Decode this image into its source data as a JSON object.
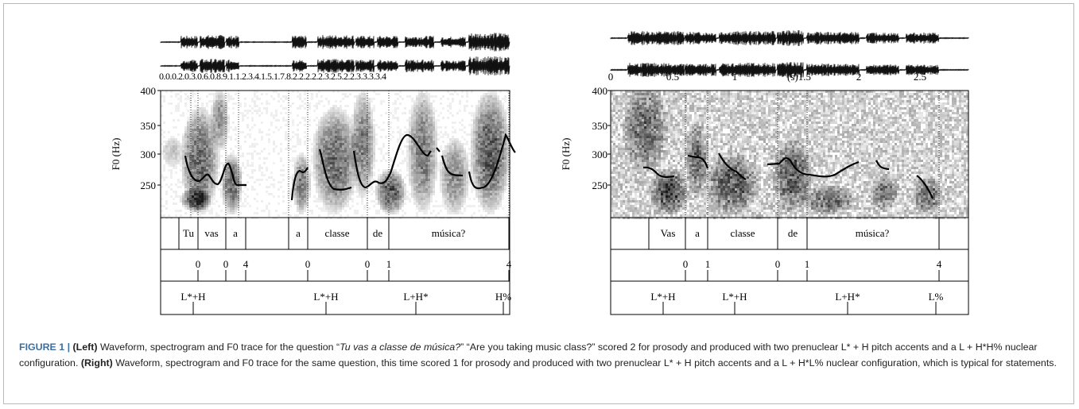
{
  "colors": {
    "accent": "#3b6ea5",
    "trace": "#000000",
    "frame": "#b9b9b9"
  },
  "panels": [
    {
      "id": "left",
      "ylabel": "F0 (Hz)",
      "yticks": [
        "400",
        "350",
        "300",
        "250"
      ],
      "time_axis_text": "0.0.0.2.0.3.0.6.0.8.9.1.1.2.3.4.1.5.1.7.8.2.2.2.2.2.3.2.5.2.2.3.3.3.3.4",
      "words": [
        "Tu",
        "vas",
        "a",
        "a",
        "classe",
        "de",
        "música?"
      ],
      "break_indices": [
        "0",
        "0",
        "4",
        "0",
        "0",
        "1",
        "4"
      ],
      "tones": [
        "L*+H",
        "L*+H",
        "L+H*",
        "H%"
      ]
    },
    {
      "id": "right",
      "ylabel": "F0 (Hz)",
      "yticks": [
        "400",
        "350",
        "300",
        "250"
      ],
      "time_ticks": [
        "0",
        "0.5",
        "1",
        "(s)1.5",
        "2",
        "2.5"
      ],
      "words": [
        "Vas",
        "a",
        "classe",
        "de",
        "música?"
      ],
      "break_indices": [
        "0",
        "1",
        "0",
        "1",
        "4"
      ],
      "tones": [
        "L*+H",
        "L*+H",
        "L+H*",
        "L%"
      ]
    }
  ],
  "caption": {
    "figure_label": "FIGURE 1 |",
    "left_label": "(Left)",
    "left_text_1": "Waveform, spectrogram and F0 trace for the question “",
    "left_question": "Tu vas a classe de música?",
    "left_text_2": "” “Are you taking music class?” scored 2 for prosody and produced with two prenuclear L* + H pitch accents and a L + H*H% nuclear configuration.",
    "right_label": "(Right)",
    "right_text": "Waveform, spectrogram and F0 trace for the same question, this time scored 1 for prosody and produced with two prenuclear L* + H pitch accents and a L + H*L% nuclear configuration, which is typical for statements."
  }
}
